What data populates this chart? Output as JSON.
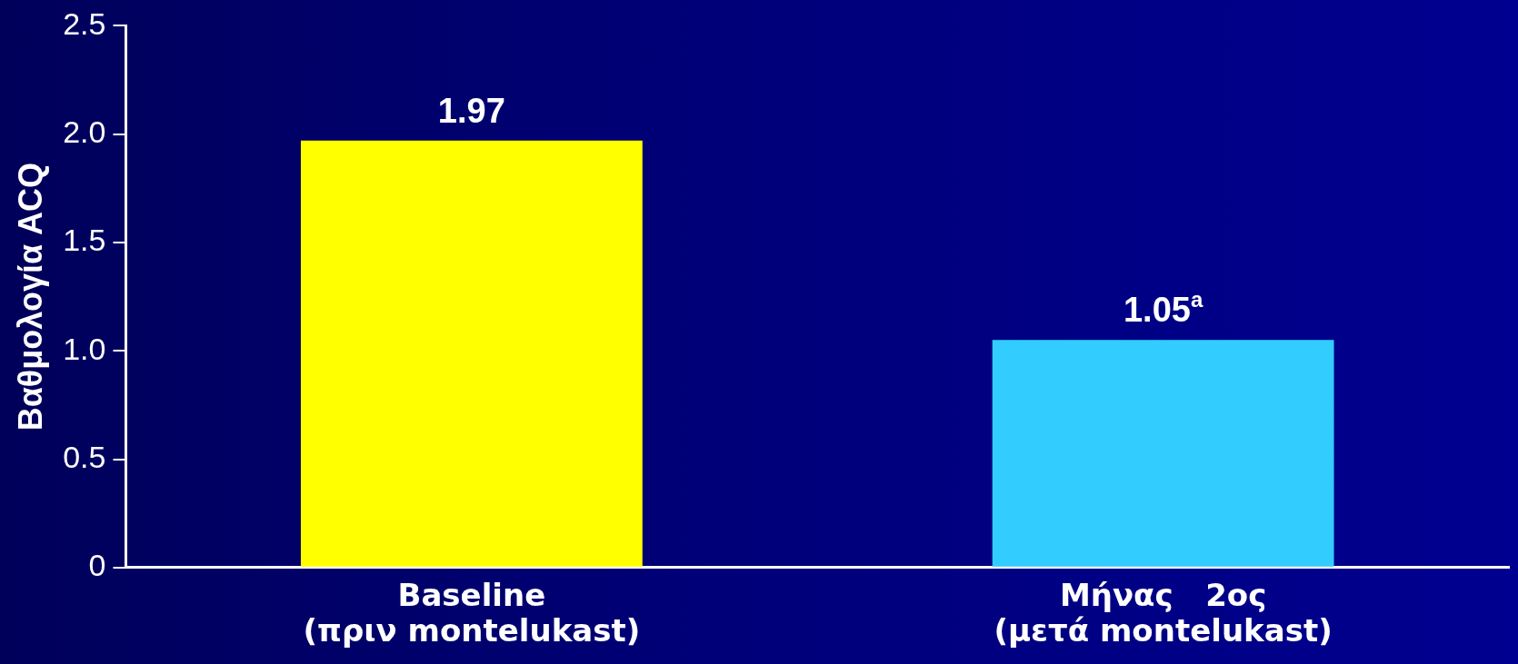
{
  "chart_data": {
    "type": "bar",
    "ylabel": "Βαθμολογία ACQ",
    "categories": [
      "Baseline\n(πριν montelukast)",
      "Μήνας   2ος\n(μετά montelukast)"
    ],
    "values": [
      1.97,
      1.05
    ],
    "colors": [
      "#ffff00",
      "#33ccff"
    ],
    "value_labels": [
      "1.97",
      "1.05$^{a}$"
    ],
    "ylim": [
      0,
      2.5
    ],
    "yticks": [
      0,
      {
        "value": 0.5,
        "label": "0.5"
      },
      {
        "value": 1,
        "label": "1.0"
      },
      {
        "value": 1.5,
        "label": "1.5"
      },
      {
        "value": 2,
        "label": "2.0"
      },
      {
        "value": 2.5,
        "label": "2.5"
      }
    ],
    "grid": false,
    "legend": false
  }
}
